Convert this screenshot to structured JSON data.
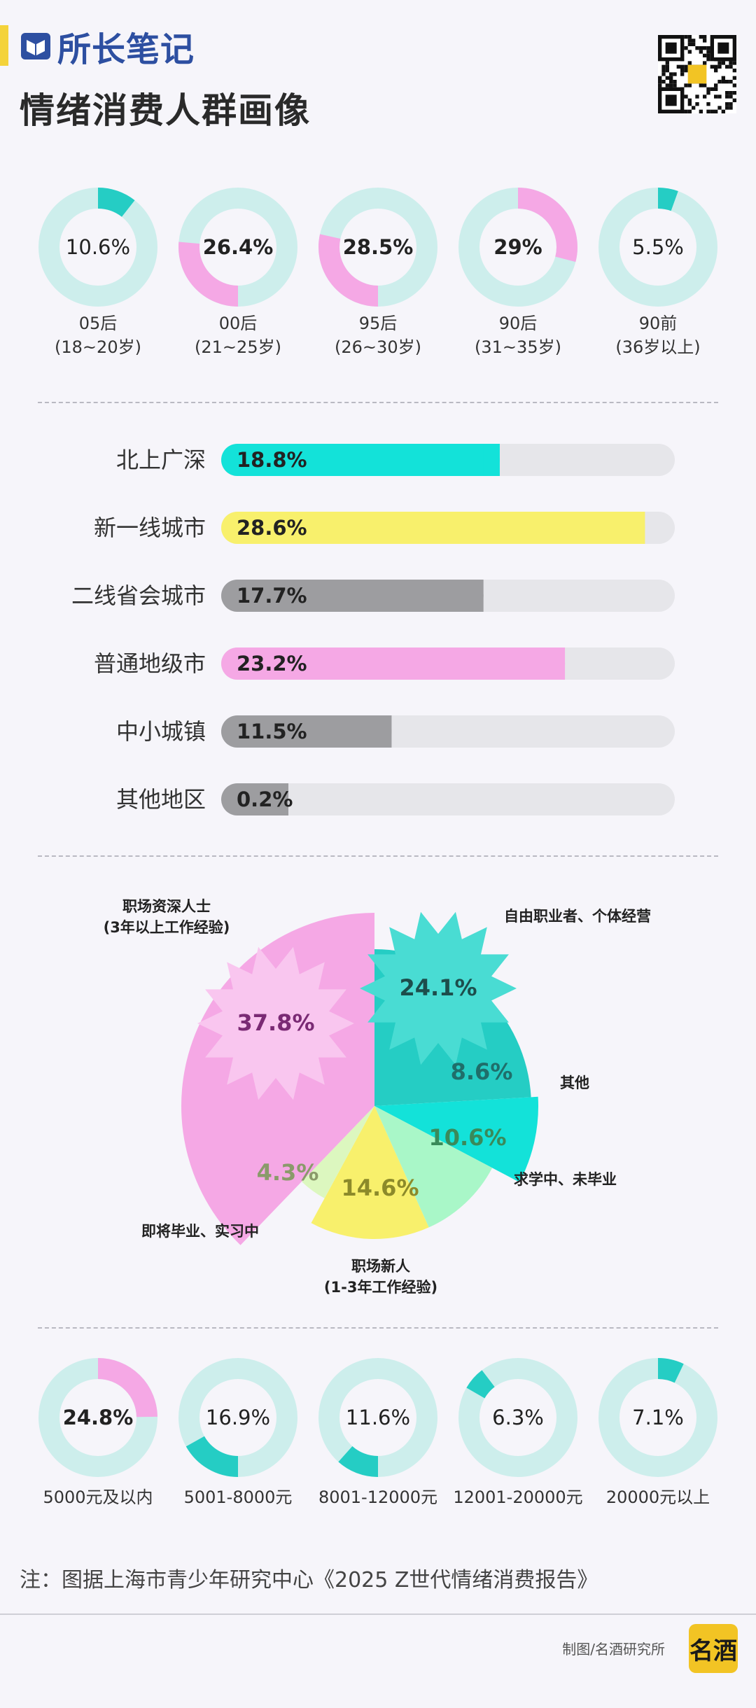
{
  "header": {
    "brand": "所长笔记",
    "title": "情绪消费人群画像"
  },
  "footer": {
    "note": "注：图据上海市青少年研究中心《2025 Z世代情绪消费报告》",
    "credit": "制图/名酒研究所",
    "logo_text": "名酒"
  },
  "colors": {
    "teal": "#25cdc4",
    "cyan": "#13e2d9",
    "pink": "#f5a8e5",
    "yellow": "#f8f06c",
    "gray": "#9d9da0",
    "light_green": "#a9f7c8",
    "pale_green": "#dcf7bf",
    "ring_bg": "#cdeeec",
    "bar_bg": "#e6e6ea"
  },
  "chart_data": [
    {
      "type": "donut",
      "categories": [
        "05后\n(18~20岁)",
        "00后\n(21~25岁)",
        "95后\n(26~30岁)",
        "90后\n(31~35岁)",
        "90前\n(36岁以上)"
      ],
      "values": [
        10.6,
        26.4,
        28.5,
        29,
        5.5
      ],
      "value_labels": [
        "10.6%",
        "26.4%",
        "28.5%",
        "29%",
        "5.5%"
      ],
      "colors": [
        "#25cdc4",
        "#f5a8e5",
        "#f5a8e5",
        "#f5a8e5",
        "#25cdc4"
      ],
      "bold": [
        false,
        true,
        true,
        true,
        false
      ],
      "start_angle_deg": [
        0,
        180,
        180,
        0,
        0
      ]
    },
    {
      "type": "bar",
      "orientation": "horizontal",
      "categories": [
        "北上广深",
        "新一线城市",
        "二线省会城市",
        "普通地级市",
        "中小城镇",
        "其他地区"
      ],
      "values": [
        18.8,
        28.6,
        17.7,
        23.2,
        11.5,
        0.2
      ],
      "value_labels": [
        "18.8%",
        "28.6%",
        "17.7%",
        "23.2%",
        "11.5%",
        "0.2%"
      ],
      "colors": [
        "#13e2d9",
        "#f8f06c",
        "#9d9da0",
        "#f5a8e5",
        "#9d9da0",
        "#9d9da0"
      ],
      "xlim": [
        0,
        30
      ]
    },
    {
      "type": "pie",
      "categories": [
        "自由职业者、个体经营",
        "其他",
        "求学中、未毕业",
        "职场新人\n(1-3年工作经验)",
        "即将毕业、实习中",
        "职场资深人士\n(3年以上工作经验)"
      ],
      "values": [
        24.1,
        8.6,
        10.6,
        14.6,
        4.3,
        37.8
      ],
      "value_labels": [
        "24.1%",
        "8.6%",
        "10.6%",
        "14.6%",
        "4.3%",
        "37.8%"
      ],
      "colors": [
        "#25cdc4",
        "#13e2d9",
        "#a9f7c8",
        "#f8f06c",
        "#dcf7bf",
        "#f5a8e5"
      ],
      "highlighted": [
        "24.1%",
        "37.8%"
      ]
    },
    {
      "type": "donut",
      "categories": [
        "5000元及以内",
        "5001-8000元",
        "8001-12000元",
        "12001-20000元",
        "20000元以上"
      ],
      "values": [
        24.8,
        16.9,
        11.6,
        6.3,
        7.1
      ],
      "value_labels": [
        "24.8%",
        "16.9%",
        "11.6%",
        "6.3%",
        "7.1%"
      ],
      "colors": [
        "#f5a8e5",
        "#25cdc4",
        "#25cdc4",
        "#25cdc4",
        "#25cdc4"
      ],
      "bold": [
        true,
        false,
        false,
        false,
        false
      ],
      "start_angle_deg": [
        0,
        180,
        180,
        300,
        0
      ]
    }
  ]
}
